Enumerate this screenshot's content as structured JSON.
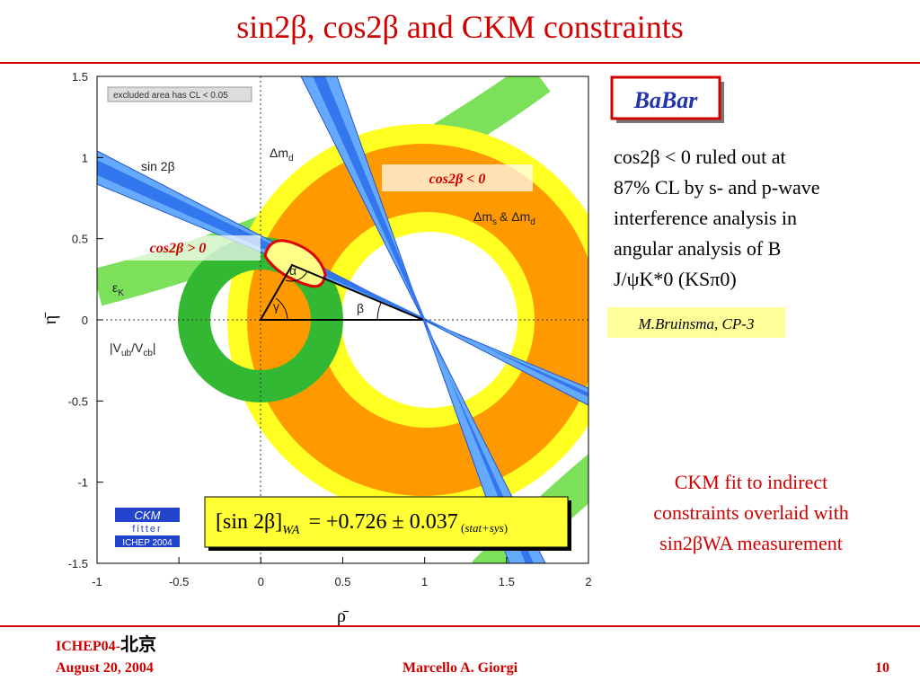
{
  "title": "sin2β, cos2β and CKM constraints",
  "figure": {
    "note": "excluded area has CL < 0.05",
    "x_axis": {
      "label": "ρ̄",
      "ticks": [
        "-1",
        "-0.5",
        "0",
        "0.5",
        "1",
        "1.5",
        "2"
      ]
    },
    "y_axis": {
      "label": "η̄",
      "ticks": [
        "1.5",
        "1",
        "0.5",
        "0",
        "-0.5",
        "-1",
        "-1.5"
      ]
    },
    "labels": {
      "sin2b": "sin 2β",
      "dmd": "Δm",
      "dmd_sub": "d",
      "dms": "Δm",
      "dms_sub": "s",
      "dms_and": "& Δm",
      "dms_sub2": "d",
      "epsk": "ε",
      "epsk_sub": "K",
      "vub": "|V",
      "vub_sub": "ub",
      "vub_mid": "/V",
      "vub_sub2": "cb",
      "vub_end": "|",
      "alpha": "α",
      "beta": "β",
      "gamma": "γ"
    },
    "cos_neg": "cos2β < 0",
    "cos_pos": "cos2β > 0",
    "logo": {
      "top": "CKM",
      "middle": "fitter",
      "bottom": "ICHEP 2004"
    },
    "formula": {
      "lhs": "sin 2β",
      "sub": "WA",
      "rhs": "= +0.726 ± 0.037",
      "note": "stat+sys"
    }
  },
  "badge": "BaBar",
  "description": [
    "cos2β < 0 ruled out at",
    "87% CL by s- and p-wave",
    "interference analysis in",
    "angular analysis of B",
    "J/ψK*0 (KSπ0)"
  ],
  "reference": "M.Bruinsma, CP-3",
  "caption": [
    "CKM fit to indirect",
    "constraints overlaid with",
    "sin2βWA measurement"
  ],
  "footer": {
    "conference": "ICHEP04-",
    "city": "北京",
    "date": "August 20, 2004",
    "author": "Marcello A. Giorgi",
    "page": "10"
  }
}
